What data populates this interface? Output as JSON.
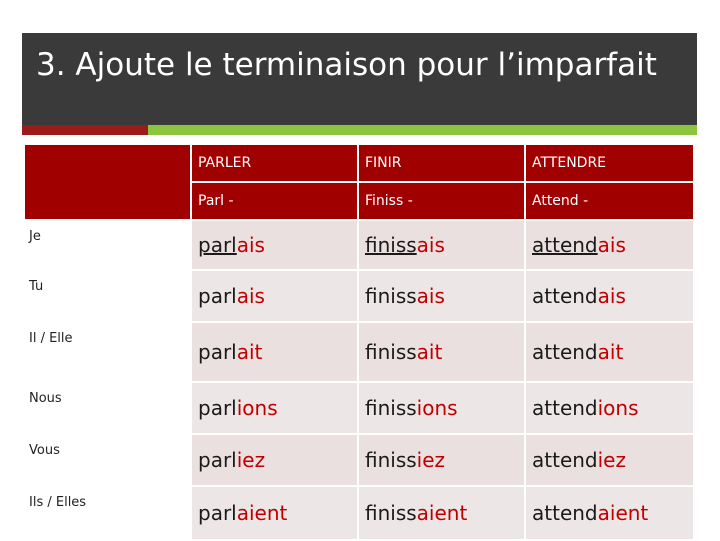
{
  "slide": {
    "title": "3. Ajoute le terminaison pour l’imparfait"
  },
  "colors": {
    "title_bg": "#3a3a3a",
    "header_bg": "#a10000",
    "ending": "#c00000",
    "accent_red": "#9b1b1b",
    "accent_green": "#8cc63f"
  },
  "table": {
    "header": [
      {
        "infinitive": "PARLER",
        "stem_label": "Parl -"
      },
      {
        "infinitive": "FINIR",
        "stem_label": "Finiss -"
      },
      {
        "infinitive": "ATTENDRE",
        "stem_label": "Attend -"
      }
    ],
    "rows": [
      {
        "pronoun": "Je",
        "cells": [
          {
            "stem": "parl",
            "ending": "ais"
          },
          {
            "stem": "finiss",
            "ending": "ais"
          },
          {
            "stem": "attend",
            "ending": "ais"
          }
        ]
      },
      {
        "pronoun": "Tu",
        "cells": [
          {
            "stem": "parl",
            "ending": "ais"
          },
          {
            "stem": "finiss",
            "ending": "ais"
          },
          {
            "stem": "attend",
            "ending": "ais"
          }
        ]
      },
      {
        "pronoun": "Il / Elle",
        "cells": [
          {
            "stem": "parl",
            "ending": "ait"
          },
          {
            "stem": "finiss",
            "ending": "ait"
          },
          {
            "stem": "attend",
            "ending": "ait"
          }
        ]
      },
      {
        "pronoun": "Nous",
        "cells": [
          {
            "stem": "parl",
            "ending": "ions"
          },
          {
            "stem": "finiss",
            "ending": "ions"
          },
          {
            "stem": "attend",
            "ending": "ions"
          }
        ]
      },
      {
        "pronoun": "Vous",
        "cells": [
          {
            "stem": "parl",
            "ending": "iez"
          },
          {
            "stem": "finiss",
            "ending": "iez"
          },
          {
            "stem": "attend",
            "ending": "iez"
          }
        ]
      },
      {
        "pronoun": "Ils / Elles",
        "cells": [
          {
            "stem": "parl",
            "ending": "aient"
          },
          {
            "stem": "finiss",
            "ending": "aient"
          },
          {
            "stem": "attend",
            "ending": "aient"
          }
        ]
      }
    ]
  }
}
